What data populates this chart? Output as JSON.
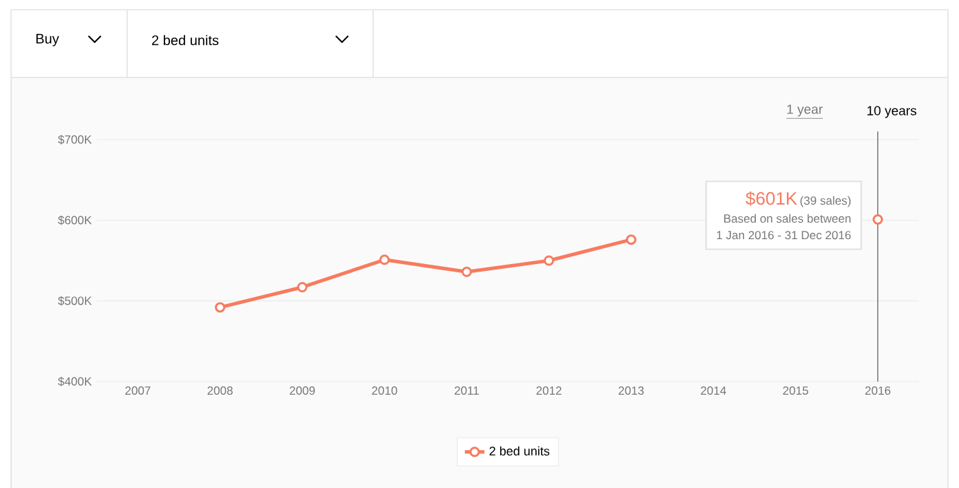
{
  "chart_data": {
    "type": "line",
    "categories": [
      "2007",
      "2008",
      "2009",
      "2010",
      "2011",
      "2012",
      "2013",
      "2014",
      "2015",
      "2016"
    ],
    "series": [
      {
        "name": "2 bed units",
        "color": "#f77b5f",
        "values": [
          null,
          492,
          517,
          551,
          536,
          550,
          576,
          null,
          null,
          601
        ]
      }
    ],
    "ylim": [
      400,
      710
    ],
    "yticks": [
      {
        "value": 400,
        "label": "$400K"
      },
      {
        "value": 500,
        "label": "$500K"
      },
      {
        "value": 600,
        "label": "$600K"
      },
      {
        "value": 700,
        "label": "$700K"
      }
    ],
    "grid": "y",
    "legend": "bottom",
    "marker": "circle",
    "ref_lines": [
      {
        "axis": "x",
        "value": "2016",
        "color": "#555555"
      }
    ],
    "annotations": [
      "$601K",
      "(39 sales)",
      "Based on sales between",
      "1 Jan 2016 - 31 Dec 2016",
      "Buy",
      "2 bed units",
      "1 year",
      "10 years"
    ]
  }
}
